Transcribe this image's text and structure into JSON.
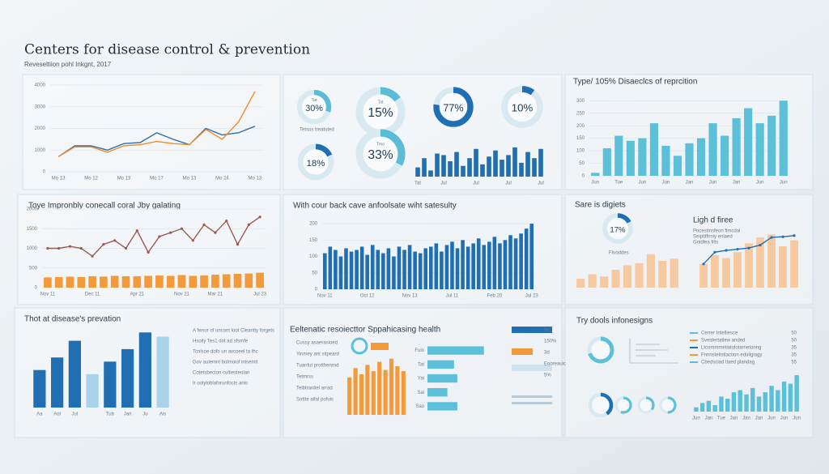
{
  "header": {
    "title": "Centers for disease control & prevention",
    "subtitle": "Reveseltiion pohl Inkgnt, 2017"
  },
  "chart_data": [
    {
      "type": "line",
      "categories": [
        "Mo 13",
        null,
        "Mo 12",
        null,
        "Mo 13",
        null,
        "Mo 17",
        null,
        "Mo 13",
        null,
        "Mo 24",
        null,
        "Mo 13"
      ],
      "series": [
        {
          "color": "#2f6fa6",
          "values": [
            700,
            1200,
            1200,
            1000,
            1300,
            1350,
            1800,
            1500,
            1250,
            2000,
            1700,
            1800,
            2100
          ]
        },
        {
          "color": "#f08a2c",
          "values": [
            700,
            1150,
            1150,
            900,
            1200,
            1250,
            1400,
            1300,
            1250,
            1950,
            1500,
            2300,
            3700
          ]
        }
      ],
      "ylim": [
        0,
        4000
      ],
      "yticks": [
        0,
        1000,
        2000,
        3000,
        4000
      ],
      "grid": true
    },
    {
      "type": "donut",
      "values": [
        30,
        15,
        77,
        10,
        18,
        33
      ],
      "value_labels": [
        "30%",
        "15%",
        "77%",
        "10%",
        "18%",
        "33%"
      ],
      "labels": [
        "Tat",
        "Tat",
        null,
        null,
        null,
        "Tmo"
      ],
      "colors": [
        "#5bbcd6",
        "#5bbcd6",
        "#1f6fb2",
        "#1f6fb2",
        "#1f6fb2",
        "#5bbcd6"
      ],
      "notes": [
        "Tetsos treatuted"
      ]
    },
    {
      "type": "bar",
      "categories": [
        "Tat",
        null,
        null,
        null,
        "Jul",
        null,
        null,
        null,
        null,
        "Jul",
        null,
        null,
        null,
        null,
        "Jul",
        null,
        null,
        null,
        null,
        "Jul"
      ],
      "values": [
        30,
        60,
        20,
        75,
        70,
        50,
        80,
        35,
        60,
        90,
        40,
        65,
        85,
        55,
        70,
        95,
        45,
        80,
        60,
        90
      ],
      "color": "#1f6fb2",
      "ylim": [
        0,
        100
      ]
    },
    {
      "type": "bar",
      "title": "Type/ 105% Disaeclcs of reprcition",
      "categories": [
        "Jun",
        null,
        "Tue",
        null,
        "Jun",
        null,
        "Jun",
        null,
        "Jan",
        null,
        "Jun",
        null,
        "Jan",
        null,
        "Jun",
        null,
        "Jun"
      ],
      "values": [
        12,
        110,
        160,
        140,
        150,
        210,
        120,
        80,
        130,
        150,
        210,
        160,
        230,
        270,
        210,
        240,
        300
      ],
      "color": "#5bc0d8",
      "ylim": [
        0,
        330
      ],
      "yticks": [
        0,
        50,
        100,
        150,
        200,
        250,
        300
      ],
      "grid": true
    },
    {
      "type": "combo",
      "title": "Toye Impronbly conecall coral Jby galating",
      "categories": [
        "Nov 11",
        null,
        null,
        null,
        "Dec 11",
        null,
        null,
        null,
        "Apr 21",
        null,
        null,
        null,
        "Nov 21",
        null,
        null,
        "Mar 21",
        null,
        null,
        null,
        "Jul 23"
      ],
      "series": [
        {
          "type": "bar",
          "color": "#f39a3a",
          "values": [
            260,
            270,
            280,
            270,
            290,
            280,
            300,
            290,
            290,
            300,
            310,
            300,
            320,
            300,
            310,
            330,
            340,
            350,
            360,
            380
          ]
        },
        {
          "type": "line",
          "color": "#9b5a52",
          "values": [
            1000,
            1000,
            1050,
            1000,
            800,
            1100,
            1200,
            1000,
            1450,
            900,
            1300,
            1400,
            1500,
            1200,
            1600,
            1400,
            1700,
            1100,
            1600,
            1800
          ]
        }
      ],
      "ylim": [
        0,
        2000
      ],
      "yticks": [
        0,
        500,
        1000,
        1500,
        2000
      ],
      "grid": true
    },
    {
      "type": "bar",
      "title": "With cour back cave anfoolsate wiht satesulty",
      "categories": [
        "Nov 11",
        null,
        null,
        null,
        null,
        null,
        null,
        null,
        "Oct 12",
        null,
        null,
        null,
        null,
        null,
        null,
        null,
        "Nov 13",
        null,
        null,
        null,
        null,
        null,
        null,
        null,
        "Jul 11",
        null,
        null,
        null,
        null,
        null,
        null,
        null,
        "Feb 20",
        null,
        null,
        null,
        null,
        null,
        null,
        "Jul 23"
      ],
      "values": [
        110,
        130,
        120,
        100,
        125,
        115,
        120,
        130,
        105,
        135,
        120,
        110,
        125,
        100,
        130,
        120,
        135,
        115,
        110,
        125,
        130,
        140,
        115,
        135,
        145,
        125,
        150,
        130,
        140,
        155,
        135,
        145,
        160,
        140,
        150,
        165,
        155,
        170,
        185,
        200
      ],
      "color": "#1f6fb2",
      "ylim": [
        0,
        220
      ],
      "yticks": [
        0,
        50,
        100,
        150,
        200
      ],
      "grid": true
    },
    {
      "type": "donut",
      "title": "Sare is digiets",
      "values": [
        17
      ],
      "value_labels": [
        "17%"
      ],
      "colors": [
        "#1f6fb2"
      ],
      "notes": [
        "Fluoddes"
      ]
    },
    {
      "type": "bar",
      "values": [
        20,
        30,
        25,
        40,
        50,
        55,
        75,
        60,
        65
      ],
      "color": "#f6c9a0",
      "ylim": [
        0,
        100
      ]
    },
    {
      "type": "combo",
      "title": "Ligh d firee",
      "notes": [
        "Pocestinsfeon fimcdal",
        "Seiptilfirniy enlaed",
        "Gnidlea filts"
      ],
      "series": [
        {
          "type": "bar",
          "color": "#f6c9a0",
          "values": [
            40,
            55,
            50,
            60,
            75,
            85,
            90,
            70,
            80
          ]
        },
        {
          "type": "line",
          "color": "#1f6fb2",
          "values": [
            40,
            60,
            63,
            65,
            67,
            72,
            85,
            86,
            88
          ]
        }
      ],
      "ylim": [
        0,
        100
      ]
    },
    {
      "type": "bar",
      "title": "Thot at disease's prevation",
      "categories": [
        "Aa",
        "Aol",
        "Jul",
        null,
        "Tub",
        "Jan",
        "Ju",
        "Ais"
      ],
      "values": [
        45,
        60,
        80,
        40,
        55,
        70,
        90,
        85
      ],
      "colors": [
        "#1f6fb2",
        "#1f6fb2",
        "#1f6fb2",
        "#a9d3ea",
        "#1f6fb2",
        "#1f6fb2",
        "#1f6fb2",
        "#a9d3ea"
      ],
      "ylim": [
        0,
        100
      ],
      "notes": [
        "A fwsor of uncont loot Clearitty forgets",
        "Hsoily Tes1 dot ad sfsmfe",
        "Tcnlsoe dofo un avcoeel ta thc",
        "Gov aulemnt bolmoiof inlsemlt",
        "Cotetsbecton cultiesteolan",
        "Ir oolyloblaforunfocts anis"
      ]
    },
    {
      "type": "bar",
      "title": "Eeltenatic resoiecttor Sppahicasing health",
      "values": [
        60,
        75,
        65,
        80,
        70,
        85,
        72,
        90,
        78,
        70
      ],
      "color": "#f39a3a",
      "ylim": [
        0,
        100
      ],
      "notes": [
        "Cussy asaerasioed",
        "Yinmey ant sitpeard",
        "Tuanfut protthenrnd",
        "Tetmrss",
        "Teibtrantiel arrad",
        "Sottte alfal pofuis"
      ]
    },
    {
      "type": "hbar",
      "categories": [
        "Fulo",
        "Tat",
        "Yai",
        "Sai",
        "Sao"
      ],
      "values": [
        85,
        40,
        45,
        30,
        45
      ],
      "color": "#5bc0d8",
      "xlim": [
        0,
        100
      ],
      "notes": [
        "5d",
        "150%",
        "3d",
        "Eooreauic",
        "5%"
      ]
    },
    {
      "type": "bar",
      "title": "Try dools infonesigns",
      "categories": [
        "Jun",
        null,
        "Jan",
        null,
        "Tue",
        null,
        "Jan",
        null,
        "Jan",
        null,
        "Jan",
        null,
        "Jun",
        null,
        "Jun",
        null,
        "Jun"
      ],
      "values": [
        10,
        20,
        25,
        15,
        35,
        30,
        45,
        50,
        40,
        55,
        35,
        45,
        60,
        50,
        70,
        65,
        85
      ],
      "color": "#5bc0d8",
      "ylim": [
        0,
        100
      ],
      "legend": [
        {
          "name": "Cerrer Intelliesce",
          "color": "#5bc0d8",
          "value": 50
        },
        {
          "name": "Sveidertatlew anded",
          "color": "#f39a3a",
          "value": 50
        },
        {
          "name": "Ltcommmetiatolotarnetonng",
          "color": "#1f6fb2",
          "value": 35
        },
        {
          "name": "Fnnnstelisttaction eduilgiagy",
          "color": "#f39a3a",
          "value": 35
        },
        {
          "name": "Cbedsciad tlaed plandag",
          "color": "#5bc0d8",
          "value": 55
        }
      ]
    },
    {
      "type": "donut",
      "values": [
        70,
        40,
        55,
        35,
        50
      ],
      "colors": [
        "#5bc0d8",
        "#1f6fb2",
        "#5bc0d8",
        "#5bc0d8",
        "#5bc0d8"
      ]
    }
  ]
}
